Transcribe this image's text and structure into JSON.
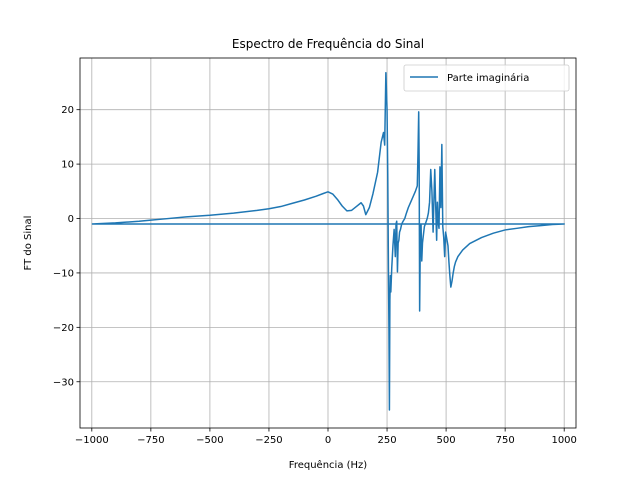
{
  "chart_data": {
    "type": "line",
    "title": "Espectro de Frequência do Sinal",
    "xlabel": "Frequência (Hz)",
    "ylabel": "FT do Sinal",
    "xlim": [
      -1050,
      1050
    ],
    "ylim": [
      -38.5,
      29.5
    ],
    "xticks": [
      -1000,
      -750,
      -500,
      -250,
      0,
      250,
      500,
      750,
      1000
    ],
    "xtick_labels": [
      "−1000",
      "−750",
      "−500",
      "−250",
      "0",
      "250",
      "500",
      "750",
      "1000"
    ],
    "yticks": [
      -30,
      -20,
      -10,
      0,
      10,
      20
    ],
    "ytick_labels": [
      "−30",
      "−20",
      "−10",
      "0",
      "10",
      "20"
    ],
    "grid": true,
    "legend_position": "top-right",
    "series": [
      {
        "name": "Parte imaginária",
        "color": "#1f77b4",
        "x": [
          -1000,
          -900,
          -800,
          -750,
          -700,
          -600,
          -500,
          -400,
          -300,
          -250,
          -200,
          -150,
          -100,
          -50,
          -20,
          0,
          20,
          40,
          60,
          80,
          100,
          120,
          140,
          150,
          160,
          175,
          190,
          210,
          225,
          235,
          240,
          245,
          250,
          253,
          256,
          258,
          260,
          262,
          264,
          266,
          270,
          275,
          280,
          285,
          288,
          291,
          294,
          297,
          300,
          303,
          307,
          312,
          318,
          325,
          332,
          340,
          350,
          360,
          370,
          378,
          381,
          384,
          386,
          388,
          390,
          392,
          394,
          397,
          400,
          404,
          408,
          412,
          416,
          420,
          425,
          430,
          435,
          440,
          445,
          450,
          452,
          455,
          458,
          460,
          463,
          466,
          470,
          474,
          478,
          482,
          486,
          490,
          494,
          498,
          500,
          504,
          508,
          512,
          516,
          520,
          525,
          530,
          535,
          540,
          550,
          570,
          600,
          650,
          700,
          750,
          800,
          850,
          900,
          950,
          1000,
          900,
          700,
          500,
          300,
          100,
          -100,
          -300,
          -500,
          -700,
          -900,
          -1000
        ],
        "y": [
          -1.0,
          -0.8,
          -0.5,
          -0.3,
          -0.1,
          0.3,
          0.6,
          1.0,
          1.5,
          1.8,
          2.2,
          2.8,
          3.4,
          4.1,
          4.6,
          4.9,
          4.5,
          3.5,
          2.3,
          1.4,
          1.5,
          2.2,
          2.9,
          2.3,
          0.7,
          2.0,
          4.5,
          8.5,
          14.0,
          15.8,
          13.5,
          26.8,
          20.0,
          8.0,
          -10.0,
          -20.0,
          -35.2,
          -15.0,
          -10.5,
          -13.5,
          -9.0,
          -5.0,
          -2.0,
          -7.0,
          -1.0,
          -0.5,
          -9.8,
          -4.5,
          -4.0,
          -2.5,
          -2.0,
          -1.0,
          -0.5,
          0.0,
          1.0,
          2.0,
          3.0,
          4.0,
          5.0,
          6.0,
          12.0,
          19.6,
          10.0,
          -17.0,
          -8.0,
          -1.0,
          -1.0,
          -7.8,
          -4.5,
          -3.0,
          -1.5,
          -1.0,
          -0.5,
          0.0,
          1.0,
          3.0,
          9.0,
          5.0,
          -2.5,
          6.0,
          9.0,
          4.0,
          -1.0,
          -4.0,
          3.0,
          -0.5,
          -1.8,
          9.5,
          2.0,
          13.6,
          -1.5,
          -3.5,
          -7.0,
          -2.5,
          -3.0,
          -4.0,
          -5.0,
          -8.0,
          -10.5,
          -12.6,
          -11.5,
          -10.0,
          -8.8,
          -8.0,
          -7.0,
          -5.8,
          -4.6,
          -3.5,
          -2.7,
          -2.1,
          -1.8,
          -1.5,
          -1.3,
          -1.1,
          -1.0,
          -1.0,
          -1.0,
          -1.0,
          -1.0,
          -1.0,
          -1.0,
          -1.0,
          -1.0,
          -1.0,
          -1.0,
          -1.0
        ]
      }
    ]
  }
}
